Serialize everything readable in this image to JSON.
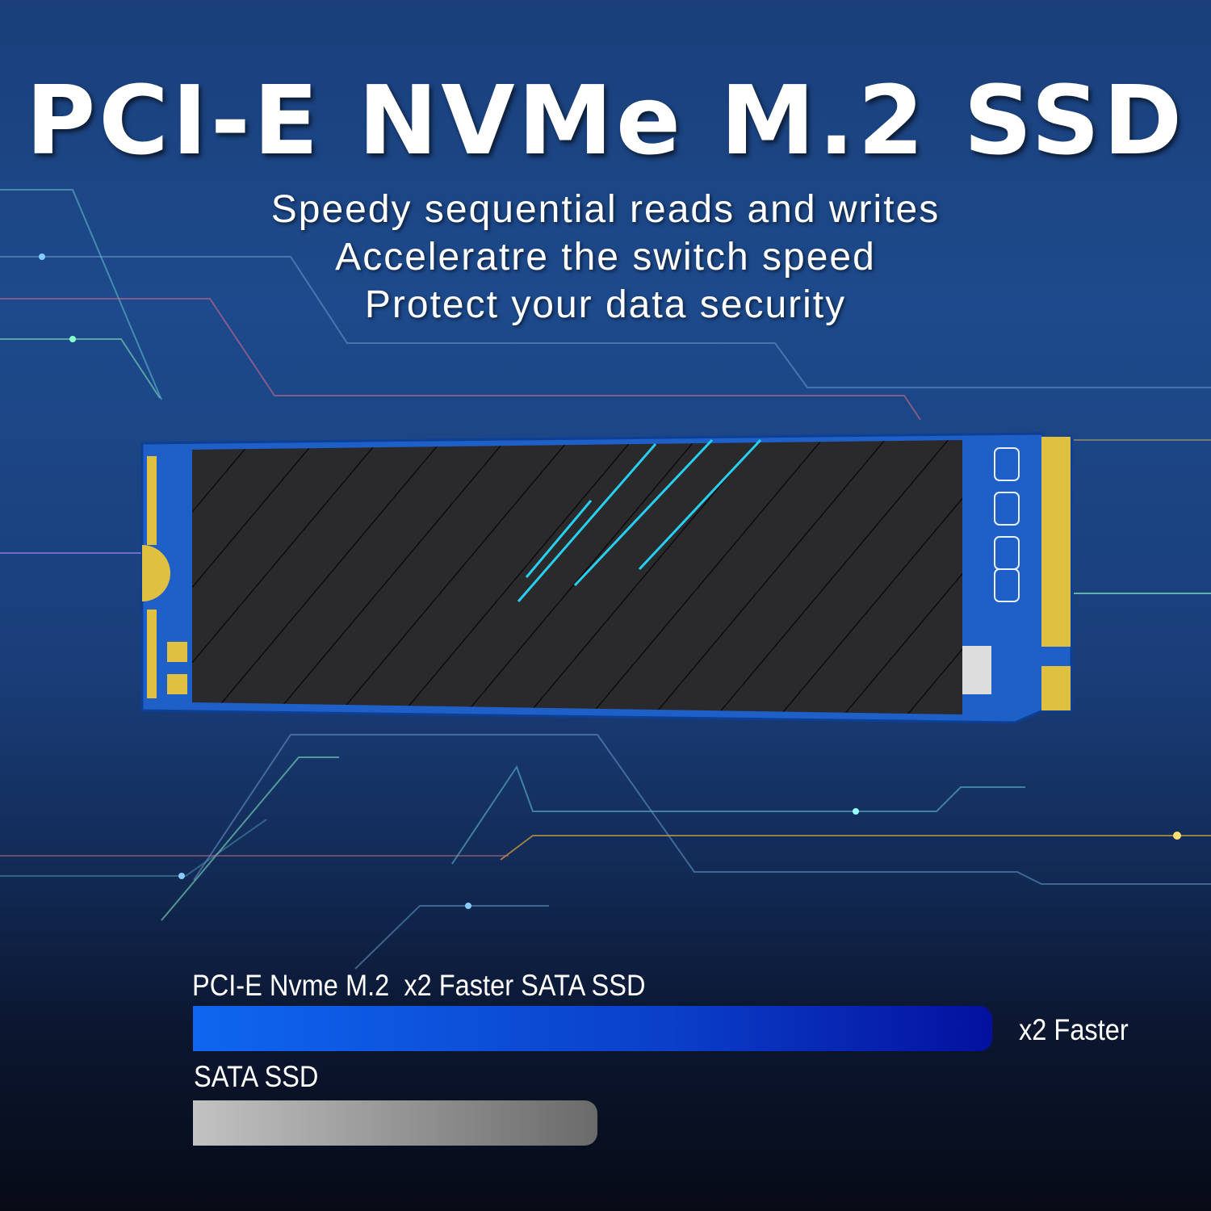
{
  "title": "PCI-E NVMe M.2 SSD",
  "features": [
    "Speedy sequential reads and writes",
    "Acceleratre the switch speed",
    "Protect your data security"
  ],
  "comparison": {
    "nvme_label": "PCI-E Nvme M.2  x2 Faster SATA SSD",
    "nvme_relative_speed": 2,
    "faster_label": "x2 Faster",
    "sata_label": "SATA SSD",
    "sata_relative_speed": 1,
    "colors": {
      "nvme_bar": "#0f66f0",
      "sata_bar": "#a0a0a0"
    }
  }
}
